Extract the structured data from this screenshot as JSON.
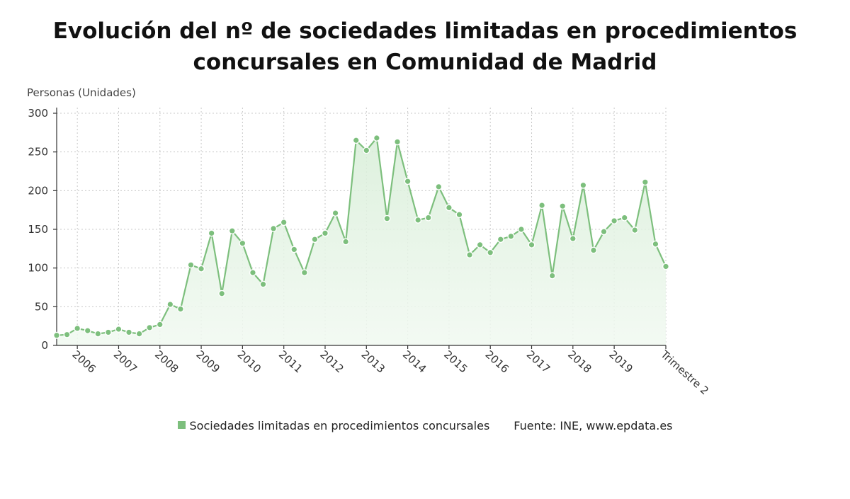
{
  "title": {
    "line1": "Evolución del nº de sociedades limitadas en procedimientos",
    "line2": "concursales en Comunidad de Madrid"
  },
  "legend": {
    "series_label": "Sociedades limitadas en procedimientos concursales",
    "source": "Fuente: INE, www.epdata.es"
  },
  "colors": {
    "line": "#7dbf7d",
    "marker": "#7dbf7d",
    "area_top": "#d8eed8",
    "area_bottom": "#f1f9f1",
    "grid": "#c8c8c8"
  },
  "chart_data": {
    "type": "area",
    "ylabel": "Personas (Unidades)",
    "ylim": [
      0,
      300
    ],
    "yticks": [
      0,
      50,
      100,
      150,
      200,
      250,
      300
    ],
    "grid": true,
    "x_tick_labels": [
      "2006",
      "2007",
      "2008",
      "2009",
      "2010",
      "2011",
      "2012",
      "2013",
      "2014",
      "2015",
      "2016",
      "2017",
      "2018",
      "2019",
      "Trimestre 2"
    ],
    "x_tick_indices": [
      2,
      6,
      10,
      14,
      18,
      22,
      26,
      30,
      34,
      38,
      42,
      46,
      50,
      54,
      59
    ],
    "series": [
      {
        "name": "Sociedades limitadas en procedimientos concursales",
        "values": [
          13,
          14,
          22,
          19,
          15,
          17,
          21,
          17,
          15,
          23,
          27,
          53,
          47,
          104,
          99,
          145,
          67,
          148,
          132,
          94,
          79,
          151,
          159,
          124,
          94,
          137,
          145,
          171,
          134,
          265,
          252,
          268,
          164,
          263,
          212,
          162,
          165,
          205,
          178,
          169,
          117,
          130,
          120,
          137,
          141,
          150,
          130,
          181,
          90,
          180,
          138,
          207,
          123,
          147,
          161,
          165,
          149,
          211,
          131,
          102
        ]
      }
    ]
  }
}
